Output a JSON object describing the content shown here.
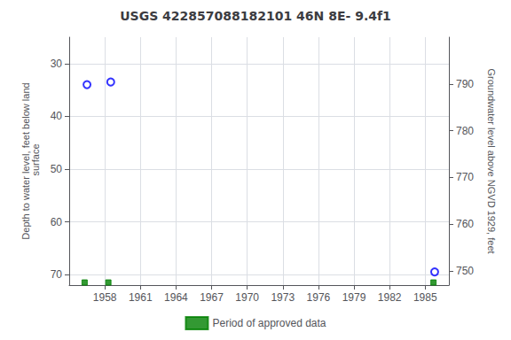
{
  "chart_data": {
    "type": "scatter",
    "title": "USGS 422857088182101 46N 8E- 9.4f1",
    "y_label": "Depth to water level, feet below land\n surface",
    "y2_label": "Groundwater level above NGVD 1929, feet",
    "xlim": [
      1955,
      1987
    ],
    "xticks": [
      1958,
      1961,
      1964,
      1967,
      1970,
      1973,
      1976,
      1979,
      1982,
      1985
    ],
    "ylim": [
      72,
      25
    ],
    "yticks": [
      30,
      40,
      50,
      60,
      70
    ],
    "y2lim": [
      747,
      800
    ],
    "y2ticks": [
      750,
      760,
      770,
      780,
      790
    ],
    "grid": true,
    "legend": "bottom",
    "series": [
      {
        "color": "#0000FF",
        "marker": "circle",
        "x": [
          1956.5,
          1958.5,
          1985.8
        ],
        "values": [
          34.0,
          33.5,
          69.5
        ]
      },
      {
        "name": "Period of approved data",
        "color": "#008000",
        "marker": "square",
        "x": [
          1956.3,
          1958.3,
          1985.7
        ],
        "values": [
          71.5,
          71.5,
          71.5
        ]
      }
    ]
  }
}
